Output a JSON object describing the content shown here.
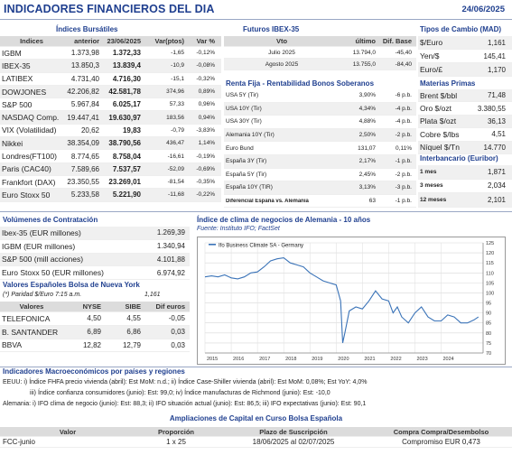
{
  "header": {
    "title": "INDICADORES FINANCIEROS DEL DIA",
    "date": "24/06/2025"
  },
  "indices": {
    "section_title": "Índices Bursátiles",
    "columns": [
      "Indices",
      "anterior",
      "23/06/2025",
      "Var(ptos)",
      "Var %"
    ],
    "rows": [
      {
        "name": "IGBM",
        "prev": "1.373,98",
        "last": "1.372,33",
        "var_pts": "-1,65",
        "var_pct": "-0,12%"
      },
      {
        "name": "IBEX-35",
        "prev": "13.850,3",
        "last": "13.839,4",
        "var_pts": "-10,9",
        "var_pct": "-0,08%"
      },
      {
        "name": "LATIBEX",
        "prev": "4.731,40",
        "last": "4.716,30",
        "var_pts": "-15,1",
        "var_pct": "-0,32%"
      },
      {
        "name": "DOWJONES",
        "prev": "42.206,82",
        "last": "42.581,78",
        "var_pts": "374,96",
        "var_pct": "0,89%"
      },
      {
        "name": "S&P 500",
        "prev": "5.967,84",
        "last": "6.025,17",
        "var_pts": "57,33",
        "var_pct": "0,96%"
      },
      {
        "name": "NASDAQ Comp.",
        "prev": "19.447,41",
        "last": "19.630,97",
        "var_pts": "183,56",
        "var_pct": "0,94%"
      },
      {
        "name": "VIX (Volatilidad)",
        "prev": "20,62",
        "last": "19,83",
        "var_pts": "-0,79",
        "var_pct": "-3,83%"
      },
      {
        "name": "Nikkei",
        "prev": "38.354,09",
        "last": "38.790,56",
        "var_pts": "436,47",
        "var_pct": "1,14%"
      },
      {
        "name": "Londres(FT100)",
        "prev": "8.774,65",
        "last": "8.758,04",
        "var_pts": "-16,61",
        "var_pct": "-0,19%"
      },
      {
        "name": "Paris (CAC40)",
        "prev": "7.589,66",
        "last": "7.537,57",
        "var_pts": "-52,09",
        "var_pct": "-0,69%"
      },
      {
        "name": "Frankfort (DAX)",
        "prev": "23.350,55",
        "last": "23.269,01",
        "var_pts": "-81,54",
        "var_pct": "-0,35%"
      },
      {
        "name": "Euro Stoxx 50",
        "prev": "5.233,58",
        "last": "5.221,90",
        "var_pts": "-11,68",
        "var_pct": "-0,22%"
      }
    ]
  },
  "futuros": {
    "section_title": "Futuros  IBEX-35",
    "columns": [
      "Vto",
      "último",
      "Dif. Base"
    ],
    "rows": [
      {
        "vto": "Julio 2025",
        "ultimo": "13.794,0",
        "dif": "-45,40"
      },
      {
        "vto": "Agosto 2025",
        "ultimo": "13.755,0",
        "dif": "-84,40"
      }
    ]
  },
  "renta_fija": {
    "section_title": "Renta Fija - Rentabilidad Bonos Soberanos",
    "rows": [
      {
        "name": "USA 5Y (Tir)",
        "value": "3,90%",
        "change": "-6 p.b."
      },
      {
        "name": "USA 10Y (Tir)",
        "value": "4,34%",
        "change": "-4 p.b."
      },
      {
        "name": "USA 30Y (Tir)",
        "value": "4,88%",
        "change": "-4 p.b."
      },
      {
        "name": "Alemania 10Y (Tir)",
        "value": "2,50%",
        "change": "-2 p.b."
      },
      {
        "name": "Euro Bund",
        "value": "131,07",
        "change": "0,11%"
      },
      {
        "name": "España 3Y (Tir)",
        "value": "2,17%",
        "change": "-1 p.b."
      },
      {
        "name": "España 5Y (Tir)",
        "value": "2,45%",
        "change": "-2 p.b."
      },
      {
        "name": "España 10Y (TIR)",
        "value": "3,13%",
        "change": "-3 p.b."
      },
      {
        "name": "Diferencial España vs. Alemania",
        "value": "63",
        "change": "-1 p.b."
      }
    ]
  },
  "tipos_cambio": {
    "section_title": "Tipos de Cambio (MAD)",
    "rows": [
      {
        "name": "$/Euro",
        "value": "1,161"
      },
      {
        "name": "Yen/$",
        "value": "145,41"
      },
      {
        "name": "Euro/£",
        "value": "1,170"
      }
    ]
  },
  "materias_primas": {
    "section_title": "Materias Primas",
    "rows": [
      {
        "name": "Brent $/bbl",
        "value": "71,48"
      },
      {
        "name": "Oro $/ozt",
        "value": "3.380,55"
      },
      {
        "name": "Plata $/ozt",
        "value": "36,13"
      },
      {
        "name": "Cobre $/lbs",
        "value": "4,51"
      },
      {
        "name": "Níquel $/Tn",
        "value": "14.770"
      }
    ]
  },
  "interbancario": {
    "section_title": "Interbancario (Euribor)",
    "rows": [
      {
        "name": "1 mes",
        "value": "1,871"
      },
      {
        "name": "3 meses",
        "value": "2,034"
      },
      {
        "name": "12 meses",
        "value": "2,101"
      }
    ]
  },
  "volumenes": {
    "section_title": "Volúmenes de Contratación",
    "rows": [
      {
        "name": "Ibex-35 (EUR millones)",
        "value": "1.269,39"
      },
      {
        "name": "IGBM (EUR millones)",
        "value": "1.340,94"
      },
      {
        "name": "S&P 500 (mill acciones)",
        "value": "4.101,88"
      },
      {
        "name": "Euro Stoxx 50 (EUR millones)",
        "value": "6.974,92"
      }
    ]
  },
  "valores_ny": {
    "section_title": "Valores Españoles Bolsa de Nueva York",
    "paridad_label": "(*) Paridad $/Euro 7:15 a.m.",
    "paridad_value": "1,161",
    "columns": [
      "Valores",
      "NYSE",
      "SIBE",
      "Dif euros"
    ],
    "rows": [
      {
        "name": "TELEFONICA",
        "nyse": "4,50",
        "sibe": "4,55",
        "dif": "-0,05"
      },
      {
        "name": "B. SANTANDER",
        "nyse": "6,89",
        "sibe": "6,86",
        "dif": "0,03"
      },
      {
        "name": "BBVA",
        "nyse": "12,82",
        "sibe": "12,79",
        "dif": "0,03"
      }
    ]
  },
  "clima": {
    "section_title": "Índice de clima de negocios de Alemania - 10 años",
    "source": "Fuente: Instituto IFO; FactSet"
  },
  "chart_data": {
    "type": "line",
    "series": [
      {
        "name": "Ifo Business Climate SA - Germany",
        "x": [
          2015.0,
          2015.25,
          2015.5,
          2015.75,
          2016.0,
          2016.25,
          2016.5,
          2016.75,
          2017.0,
          2017.25,
          2017.5,
          2017.75,
          2018.0,
          2018.25,
          2018.5,
          2018.75,
          2019.0,
          2019.25,
          2019.5,
          2019.75,
          2020.0,
          2020.17,
          2020.25,
          2020.33,
          2020.5,
          2020.75,
          2021.0,
          2021.25,
          2021.5,
          2021.75,
          2022.0,
          2022.17,
          2022.33,
          2022.5,
          2022.75,
          2023.0,
          2023.25,
          2023.5,
          2023.75,
          2024.0,
          2024.25,
          2024.5,
          2024.75,
          2025.0,
          2025.25,
          2025.42
        ],
        "values": [
          108,
          108.5,
          108,
          109,
          107.5,
          107,
          108,
          110,
          110.5,
          113,
          116,
          117,
          117.5,
          115,
          114,
          113,
          110,
          108,
          106,
          105,
          104,
          96,
          75,
          80,
          91,
          93,
          92,
          96,
          101,
          97,
          96,
          90,
          93,
          88,
          85,
          90,
          93,
          88,
          86,
          86,
          89,
          88,
          85,
          85,
          86.5,
          88
        ]
      }
    ],
    "xlim": [
      2015,
      2025.6
    ],
    "ylim": [
      70,
      125
    ],
    "x_ticks": [
      "2015",
      "2016",
      "2017",
      "2018",
      "2019",
      "2020",
      "2021",
      "2022",
      "2023",
      "2024"
    ],
    "y_ticks": [
      "125",
      "120",
      "115",
      "110",
      "105",
      "100",
      "95",
      "90",
      "85",
      "80",
      "75",
      "70"
    ],
    "grid": true
  },
  "macro": {
    "section_title": "Indicadores Macroeconómicos por países y regiones",
    "lines": [
      {
        "label": "EEUU:",
        "text": "i) Índice FHFA precio vivienda (abril): Est MoM: n.d.; ii) Índice Case-Shiller vivienda (abril): Est MoM: 0,08%; Est YoY: 4,0%"
      },
      {
        "label": "",
        "text": "iii) Índice confianza consumidores (junio): Est: 99,0; iv) Índice manufacturas de Richmond (junio): Est: -10,0"
      },
      {
        "label": "Alemania:",
        "text": "i) IFO clima de negocio (junio): Est: 88,3; ii) IFO situación actual (junio): Est: 86,5; iii) IFO expectativas (junio): Est: 90,1"
      }
    ]
  },
  "ampliaciones": {
    "section_title": "Ampliaciones de Capital en Curso Bolsa Española",
    "columns": [
      "Valor",
      "Proporción",
      "Plazo de Suscripción",
      "Compra Compra/Desembolso"
    ],
    "rows": [
      {
        "valor": "FCC-junio",
        "proporcion": "1 x 25",
        "plazo": "18/06/2025 al 02/07/2025",
        "compra": "Compromiso EUR 0,473"
      }
    ]
  }
}
